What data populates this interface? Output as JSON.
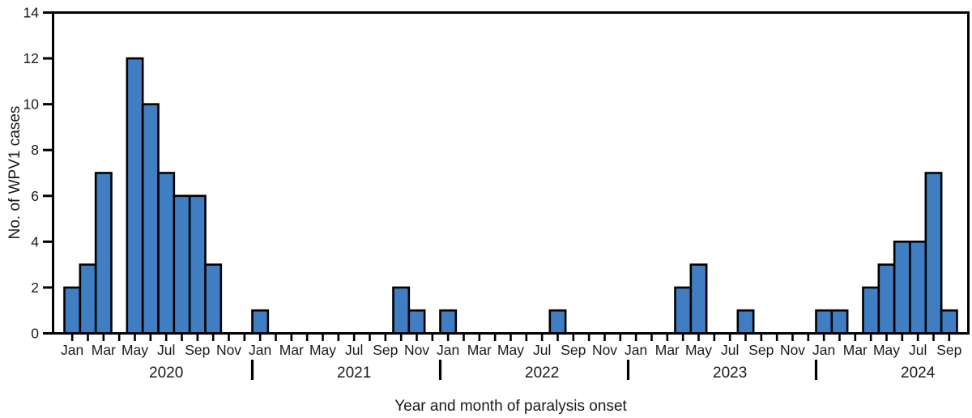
{
  "figure": {
    "background": "#ffffff"
  },
  "chart_data": {
    "type": "bar",
    "title": "",
    "xlabel": "Year and month of paralysis onset",
    "ylabel": "No. of WPV1 cases",
    "ylim": [
      0,
      14
    ],
    "yticks": [
      0,
      2,
      4,
      6,
      8,
      10,
      12,
      14
    ],
    "grid": false,
    "legend_position": "none",
    "bar_fill": "#3F7EC3",
    "bar_stroke": "#000000",
    "axis_color": "#000000",
    "text_color": "#1a1a1a",
    "months": [
      "Jan",
      "Feb",
      "Mar",
      "Apr",
      "May",
      "Jun",
      "Jul",
      "Aug",
      "Sep",
      "Oct",
      "Nov",
      "Dec"
    ],
    "month_label_every": 2,
    "groups": [
      {
        "year": "2020",
        "values": [
          2,
          3,
          7,
          0,
          12,
          10,
          7,
          6,
          6,
          3,
          0,
          0
        ]
      },
      {
        "year": "2021",
        "values": [
          1,
          0,
          0,
          0,
          0,
          0,
          0,
          0,
          0,
          2,
          1,
          0
        ]
      },
      {
        "year": "2022",
        "values": [
          1,
          0,
          0,
          0,
          0,
          0,
          0,
          1,
          0,
          0,
          0,
          0
        ]
      },
      {
        "year": "2023",
        "values": [
          0,
          0,
          0,
          2,
          3,
          0,
          0,
          1,
          0,
          0,
          0,
          0
        ]
      },
      {
        "year": "2024",
        "values": [
          1,
          1,
          0,
          2,
          3,
          4,
          4,
          7,
          1
        ]
      }
    ]
  }
}
